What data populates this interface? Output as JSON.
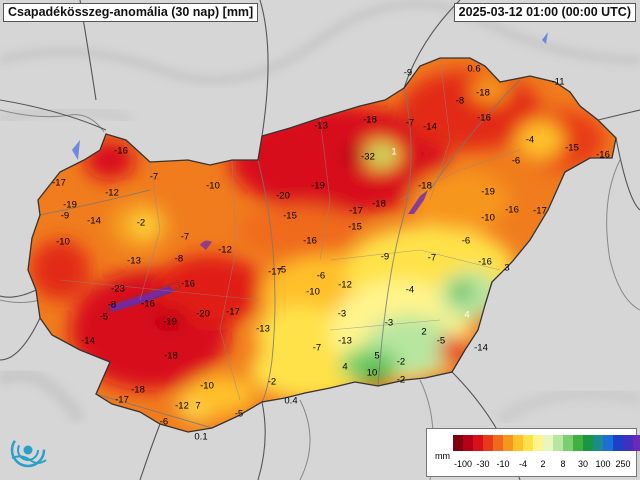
{
  "map": {
    "title": "Csapadékösszeg-anomália (30 nap) [mm]",
    "timestamp": "2025-03-12 01:00 (00:00 UTC)"
  },
  "values": [
    "0.6",
    "-11",
    "-9",
    "-18",
    "-8",
    "-16",
    "-13",
    "-18",
    "-7",
    "-14",
    "-4",
    "-15",
    "-16",
    "-16",
    "-32",
    "1",
    "-7",
    "-6",
    "-10",
    "-20",
    "-19",
    "-18",
    "-17",
    "-19",
    "-12",
    "-17",
    "-19",
    "-18",
    "-15",
    "-2",
    "-17",
    "-9",
    "-14",
    "-15",
    "-10",
    "-16",
    "-7",
    "-16",
    "-6",
    "-10",
    "-12",
    "-9",
    "-7",
    "-13",
    "-8",
    "-16",
    "-5",
    "3",
    "-17",
    "-6",
    "-12",
    "-16",
    "-23",
    "-19",
    "-20",
    "-17",
    "-16",
    "-10",
    "-13",
    "-4",
    "-3",
    "-5",
    "-8",
    "4",
    "-14",
    "-3",
    "2",
    "-7",
    "-5",
    "-18",
    "-2",
    "-13",
    "4",
    "5",
    "10",
    "-10",
    "-18",
    "-17",
    "-2",
    "0.4",
    "-2",
    "-12",
    "7",
    "-5",
    "-14",
    "-6",
    "0.1"
  ],
  "legend": {
    "unit": "mm",
    "tick_labels": [
      "-100",
      "-30",
      "-10",
      "-4",
      "2",
      "8",
      "30",
      "100",
      "250"
    ],
    "colors": [
      "#800010",
      "#b50018",
      "#d8101a",
      "#e83a18",
      "#f06a1c",
      "#f7961e",
      "#ffc02a",
      "#ffe24a",
      "#fff48c",
      "#e8f6c0",
      "#b8e6a0",
      "#78d070",
      "#40b040",
      "#1a9640",
      "#1a8c8c",
      "#1c6ed8",
      "#1c40c8",
      "#4030c0",
      "#6a2ab8",
      "#8a30b8"
    ]
  },
  "logo": {
    "icon": "weather-service-logo-icon"
  }
}
